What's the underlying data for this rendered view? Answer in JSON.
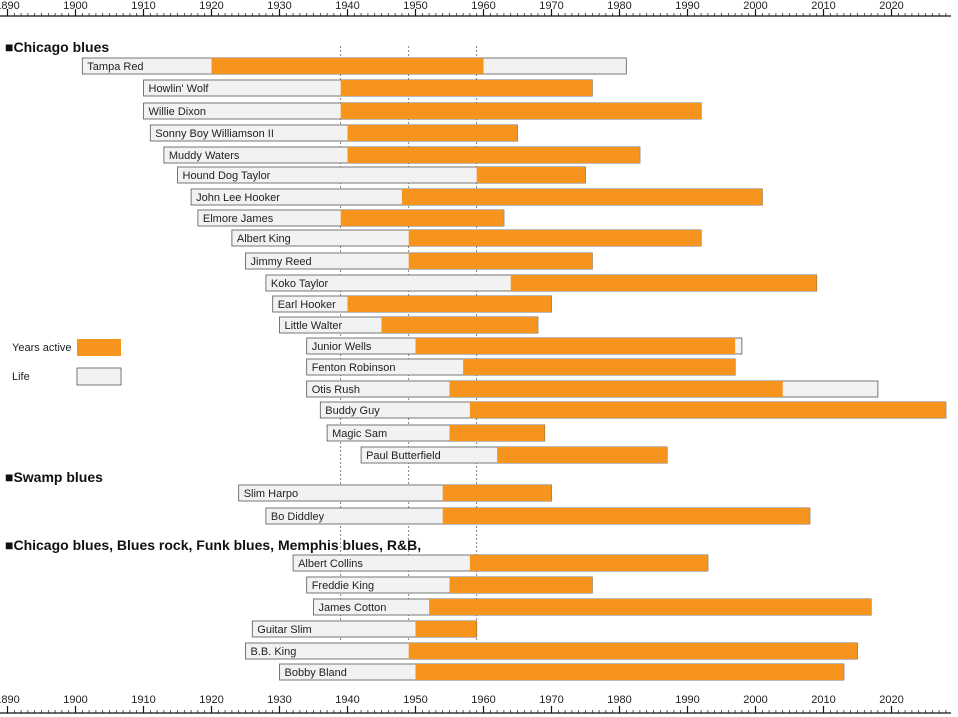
{
  "chart_data": {
    "type": "gantt-timeline",
    "title": "",
    "x_axis": {
      "min": 1890,
      "max": 2028,
      "labels": [
        "1890",
        "1900",
        "1910",
        "1920",
        "1930",
        "1940",
        "1950",
        "1960",
        "1970",
        "1980",
        "1990",
        "2000",
        "2010",
        "2020"
      ],
      "gridlines": [
        1939,
        1949,
        1959
      ]
    },
    "legend": [
      {
        "label": "Years active",
        "color": "#f7941d"
      },
      {
        "label": "Life",
        "color": "#f2f2f2"
      }
    ],
    "sections": [
      {
        "title": "■Chicago blues",
        "artists": [
          {
            "name": "Tampa Red",
            "life": [
              1901,
              1981
            ],
            "active": [
              1920,
              1960
            ]
          },
          {
            "name": "Howlin' Wolf",
            "life": [
              1910,
              1976
            ],
            "active": [
              1939,
              1976
            ]
          },
          {
            "name": "Willie Dixon",
            "life": [
              1910,
              1992
            ],
            "active": [
              1939,
              1992
            ]
          },
          {
            "name": "Sonny Boy Williamson II",
            "life": [
              1911,
              1965
            ],
            "active": [
              1940,
              1965
            ]
          },
          {
            "name": "Muddy Waters",
            "life": [
              1913,
              1983
            ],
            "active": [
              1940,
              1983
            ]
          },
          {
            "name": "Hound Dog Taylor",
            "life": [
              1915,
              1975
            ],
            "active": [
              1959,
              1975
            ]
          },
          {
            "name": "John Lee Hooker",
            "life": [
              1917,
              2001
            ],
            "active": [
              1948,
              2001
            ]
          },
          {
            "name": "Elmore James",
            "life": [
              1918,
              1963
            ],
            "active": [
              1939,
              1963
            ]
          },
          {
            "name": "Albert King",
            "life": [
              1923,
              1992
            ],
            "active": [
              1949,
              1992
            ]
          },
          {
            "name": "Jimmy Reed",
            "life": [
              1925,
              1976
            ],
            "active": [
              1949,
              1976
            ]
          },
          {
            "name": "Koko Taylor",
            "life": [
              1928,
              2009
            ],
            "active": [
              1964,
              2009
            ]
          },
          {
            "name": "Earl Hooker",
            "life": [
              1929,
              1970
            ],
            "active": [
              1940,
              1970
            ]
          },
          {
            "name": "Little Walter",
            "life": [
              1930,
              1968
            ],
            "active": [
              1945,
              1968
            ]
          },
          {
            "name": "Junior Wells",
            "life": [
              1934,
              1998
            ],
            "active": [
              1950,
              1997
            ]
          },
          {
            "name": "Fenton Robinson",
            "life": [
              1934,
              1997
            ],
            "active": [
              1957,
              1997
            ]
          },
          {
            "name": "Otis Rush",
            "life": [
              1934,
              2018
            ],
            "active": [
              1955,
              2004
            ]
          },
          {
            "name": "Buddy Guy",
            "life": [
              1936,
              2028
            ],
            "active": [
              1958,
              2028
            ]
          },
          {
            "name": "Magic Sam",
            "life": [
              1937,
              1969
            ],
            "active": [
              1955,
              1969
            ]
          },
          {
            "name": "Paul Butterfield",
            "life": [
              1942,
              1987
            ],
            "active": [
              1962,
              1987
            ]
          }
        ]
      },
      {
        "title": "■Swamp blues",
        "artists": [
          {
            "name": "Slim Harpo",
            "life": [
              1924,
              1970
            ],
            "active": [
              1954,
              1970
            ]
          },
          {
            "name": "Bo Diddley",
            "life": [
              1928,
              2008
            ],
            "active": [
              1954,
              2008
            ]
          }
        ]
      },
      {
        "title": "■Chicago blues, Blues rock, Funk blues, Memphis blues, R&B,",
        "artists": [
          {
            "name": "Albert Collins",
            "life": [
              1932,
              1993
            ],
            "active": [
              1958,
              1993
            ]
          },
          {
            "name": "Freddie King",
            "life": [
              1934,
              1976
            ],
            "active": [
              1955,
              1976
            ]
          },
          {
            "name": "James Cotton",
            "life": [
              1935,
              2017
            ],
            "active": [
              1952,
              2017
            ]
          },
          {
            "name": "Guitar Slim",
            "life": [
              1926,
              1959
            ],
            "active": [
              1950,
              1959
            ]
          },
          {
            "name": "B.B. King",
            "life": [
              1925,
              2015
            ],
            "active": [
              1949,
              2015
            ]
          },
          {
            "name": "Bobby Bland",
            "life": [
              1930,
              2013
            ],
            "active": [
              1950,
              2013
            ]
          }
        ]
      }
    ]
  }
}
